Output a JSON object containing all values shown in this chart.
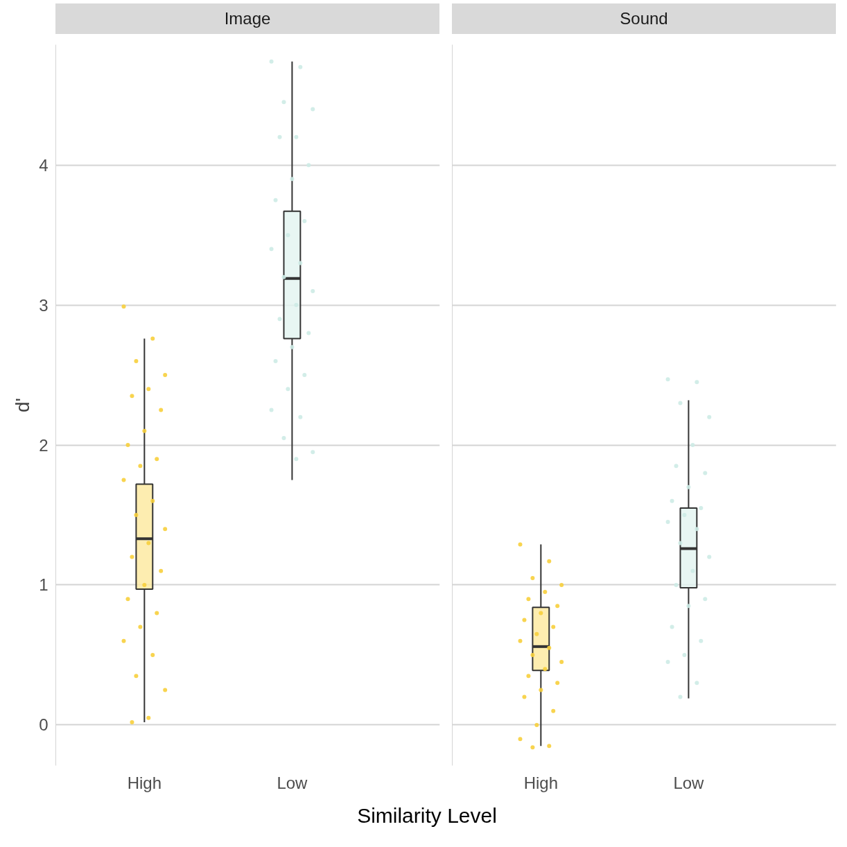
{
  "chart_data": [
    {
      "type": "box",
      "title": "Image",
      "ylabel": "d'",
      "xlabel": "Similarity Level",
      "categories": [
        "High",
        "Low"
      ],
      "colors": [
        "#fce89c",
        "#e2f4f0"
      ],
      "ylim": [
        -0.29,
        4.86
      ],
      "yticks": [
        0,
        1,
        2,
        3,
        4
      ],
      "grid": "y",
      "marker": "circle",
      "boxes": [
        {
          "low": 0.02,
          "q1": 0.97,
          "median": 1.33,
          "q3": 1.72,
          "high": 2.76
        },
        {
          "low": 1.75,
          "q1": 2.76,
          "median": 3.19,
          "q3": 3.67,
          "high": 4.74
        }
      ],
      "series": [
        {
          "type": "scatter",
          "color": "#f7cf3c",
          "x": [
            "High",
            "High",
            "High",
            "High",
            "High",
            "High",
            "High",
            "High",
            "High",
            "High",
            "High",
            "High",
            "High",
            "High",
            "High",
            "High",
            "High",
            "High",
            "High",
            "High",
            "High",
            "High",
            "High",
            "High",
            "High",
            "High",
            "High",
            "High"
          ],
          "values": [
            2.99,
            2.76,
            2.6,
            2.5,
            2.4,
            2.35,
            2.25,
            2.1,
            2.0,
            1.9,
            1.85,
            1.75,
            1.6,
            1.5,
            1.4,
            1.3,
            1.2,
            1.1,
            1.0,
            0.9,
            0.8,
            0.7,
            0.6,
            0.5,
            0.35,
            0.25,
            0.05,
            0.02
          ]
        },
        {
          "type": "scatter",
          "color": "#cdebe5",
          "x": [
            "Low",
            "Low",
            "Low",
            "Low",
            "Low",
            "Low",
            "Low",
            "Low",
            "Low",
            "Low",
            "Low",
            "Low",
            "Low",
            "Low",
            "Low",
            "Low",
            "Low",
            "Low",
            "Low",
            "Low",
            "Low",
            "Low",
            "Low",
            "Low",
            "Low",
            "Low",
            "Low"
          ],
          "values": [
            4.74,
            4.7,
            4.45,
            4.4,
            4.2,
            4.2,
            4.0,
            3.9,
            3.75,
            3.6,
            3.5,
            3.4,
            3.3,
            3.2,
            3.1,
            3.0,
            2.9,
            2.8,
            2.7,
            2.6,
            2.5,
            2.4,
            2.25,
            2.2,
            2.05,
            1.95,
            1.9
          ]
        }
      ]
    },
    {
      "type": "box",
      "title": "Sound",
      "categories": [
        "High",
        "Low"
      ],
      "colors": [
        "#fce89c",
        "#e2f4f0"
      ],
      "ylim": [
        -0.29,
        4.86
      ],
      "yticks": [
        0,
        1,
        2,
        3,
        4
      ],
      "grid": "y",
      "tick_labels": "x",
      "marker": "circle",
      "boxes": [
        {
          "low": -0.15,
          "q1": 0.39,
          "median": 0.56,
          "q3": 0.84,
          "high": 1.29
        },
        {
          "low": 0.19,
          "q1": 0.98,
          "median": 1.26,
          "q3": 1.55,
          "high": 2.32
        }
      ],
      "series": [
        {
          "type": "scatter",
          "color": "#f7cf3c",
          "x": [
            "High",
            "High",
            "High",
            "High",
            "High",
            "High",
            "High",
            "High",
            "High",
            "High",
            "High",
            "High",
            "High",
            "High",
            "High",
            "High",
            "High",
            "High",
            "High",
            "High",
            "High",
            "High",
            "High",
            "High",
            "High"
          ],
          "values": [
            1.29,
            1.17,
            1.05,
            1.0,
            0.95,
            0.9,
            0.85,
            0.8,
            0.75,
            0.7,
            0.65,
            0.6,
            0.55,
            0.5,
            0.45,
            0.4,
            0.35,
            0.3,
            0.25,
            0.2,
            0.1,
            0.0,
            -0.1,
            -0.15,
            -0.16
          ]
        },
        {
          "type": "scatter",
          "color": "#cdebe5",
          "x": [
            "Low",
            "Low",
            "Low",
            "Low",
            "Low",
            "Low",
            "Low",
            "Low",
            "Low",
            "Low",
            "Low",
            "Low",
            "Low",
            "Low",
            "Low",
            "Low",
            "Low",
            "Low",
            "Low",
            "Low",
            "Low",
            "Low",
            "Low",
            "Low",
            "Low"
          ],
          "values": [
            2.47,
            2.45,
            2.3,
            2.2,
            2.0,
            1.85,
            1.8,
            1.7,
            1.6,
            1.55,
            1.5,
            1.45,
            1.4,
            1.3,
            1.2,
            1.1,
            1.0,
            0.9,
            0.85,
            0.7,
            0.6,
            0.5,
            0.45,
            0.3,
            0.2
          ]
        }
      ]
    }
  ]
}
